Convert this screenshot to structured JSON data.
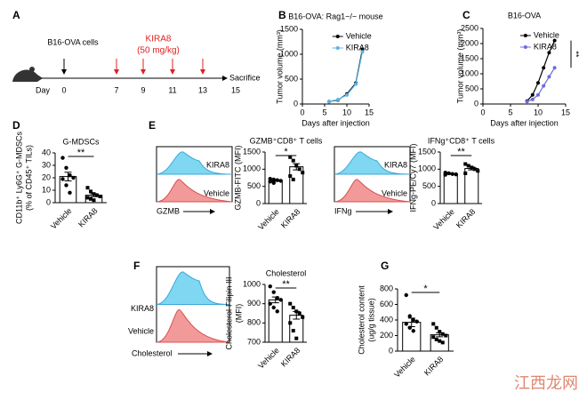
{
  "panel_labels": [
    "A",
    "B",
    "C",
    "D",
    "E",
    "F",
    "G"
  ],
  "timeline": {
    "cells_label": "B16-OVA cells",
    "drug_label": "KIRA8",
    "dose_label": "(50 mg/kg)",
    "day_label": "Day",
    "days": [
      0,
      7,
      9,
      11,
      13,
      15
    ],
    "end_label": "Sacrifice"
  },
  "histograms": [
    {
      "labels": [
        "KIRA8",
        "Vehicle"
      ],
      "axis_label": "GZMB"
    },
    {
      "labels": [
        "KIRA8",
        "Vehicle"
      ],
      "axis_label": "IFNg"
    },
    {
      "labels": [
        "KIRA8",
        "Vehicle"
      ],
      "axis_label": "Cholesterol"
    }
  ],
  "watermark": "江西龙网",
  "chart_data": [
    {
      "type": "line",
      "title": "B16-OVA: Rag1−/− mouse",
      "xlabel": "Days after injection",
      "ylabel": "Tumor volume (mm³)",
      "x": [
        6,
        8,
        10,
        12,
        13.5
      ],
      "xlim": [
        0,
        15
      ],
      "xticks": [
        0,
        5,
        10,
        15
      ],
      "ylim": [
        0,
        1500
      ],
      "yticks": [
        0,
        500,
        1000,
        1500
      ],
      "series": [
        {
          "name": "Vehicle",
          "color": "#000000",
          "values": [
            50,
            80,
            200,
            420,
            1100
          ]
        },
        {
          "name": "KIRA8",
          "color": "#5ab4e6",
          "values": [
            50,
            90,
            180,
            400,
            1050
          ]
        }
      ]
    },
    {
      "type": "line",
      "title": "B16-OVA",
      "xlabel": "Days after injection",
      "ylabel": "Tumor volume (mm³)",
      "x": [
        8,
        9,
        10,
        11,
        12,
        13
      ],
      "xlim": [
        0,
        15
      ],
      "xticks": [
        0,
        5,
        10,
        15
      ],
      "ylim": [
        0,
        2500
      ],
      "yticks": [
        0,
        500,
        1000,
        1500,
        2000,
        2500
      ],
      "annotation": "**",
      "series": [
        {
          "name": "Vehicle",
          "color": "#000000",
          "values": [
            100,
            300,
            700,
            1200,
            1700,
            2100
          ]
        },
        {
          "name": "KIRA8",
          "color": "#6b6be0",
          "values": [
            80,
            150,
            300,
            600,
            900,
            1200
          ]
        }
      ]
    },
    {
      "type": "dotbar",
      "title": "G-MDSCs",
      "ylabel": [
        "CD11b⁺ Ly6G⁺ G-MDSCs",
        "(% of CD45⁺ TILs)"
      ],
      "categories": [
        "Vehicle",
        "KIRA8"
      ],
      "values": [
        21,
        6
      ],
      "errors": [
        3.5,
        1.2
      ],
      "points": [
        [
          36,
          28,
          22,
          20,
          19,
          14,
          8
        ],
        [
          12,
          9,
          7,
          6,
          5,
          4,
          3,
          2
        ]
      ],
      "ylim": [
        0,
        40
      ],
      "yticks": [
        0,
        10,
        20,
        30,
        40
      ],
      "significance": "**"
    },
    {
      "type": "dotbar",
      "title": "GZMB⁺CD8⁺ T cells",
      "ylabel": [
        "GZMB-FITC (MFI)"
      ],
      "categories": [
        "Vehicle",
        "KIRA8"
      ],
      "values": [
        670,
        1070
      ],
      "errors": [
        25,
        90
      ],
      "points": [
        [
          720,
          700,
          680,
          660,
          640,
          600
        ],
        [
          1350,
          1250,
          1100,
          1000,
          900,
          800,
          700
        ]
      ],
      "ylim": [
        0,
        1500
      ],
      "yticks": [
        0,
        500,
        1000,
        1500
      ],
      "significance": "*"
    },
    {
      "type": "dotbar",
      "title": "IFNg⁺CD8⁺ T cells",
      "ylabel": [
        "IFNg-PE/Cy7 (MFI)"
      ],
      "categories": [
        "Vehicle",
        "KIRA8"
      ],
      "values": [
        860,
        1020
      ],
      "errors": [
        10,
        40
      ],
      "points": [
        [
          900,
          880,
          860,
          850,
          840
        ],
        [
          1150,
          1100,
          1050,
          1000,
          950,
          880
        ]
      ],
      "ylim": [
        0,
        1500
      ],
      "yticks": [
        0,
        500,
        1000,
        1500
      ],
      "significance": "**"
    },
    {
      "type": "dotbar",
      "title": "Cholesterol",
      "ylabel": [
        "Cholesterol-Filipin III",
        "(MFI)"
      ],
      "categories": [
        "Vehicle",
        "KIRA8"
      ],
      "values": [
        920,
        840
      ],
      "errors": [
        15,
        20
      ],
      "points": [
        [
          990,
          960,
          930,
          920,
          900,
          880,
          860
        ],
        [
          900,
          880,
          860,
          850,
          830,
          800,
          760,
          720
        ]
      ],
      "ylim": [
        700,
        1000
      ],
      "yticks": [
        700,
        800,
        900,
        1000
      ],
      "significance": "**"
    },
    {
      "type": "dotbar",
      "ylabel": [
        "Cholesterol content",
        "(ug/g tissue)"
      ],
      "categories": [
        "Vehicle",
        "KIRA8"
      ],
      "values": [
        370,
        210
      ],
      "errors": [
        55,
        25
      ],
      "points": [
        [
          720,
          450,
          400,
          380,
          350,
          300,
          260
        ],
        [
          350,
          300,
          250,
          220,
          200,
          180,
          150,
          130,
          110
        ]
      ],
      "ylim": [
        0,
        800
      ],
      "yticks": [
        0,
        200,
        400,
        600,
        800
      ],
      "significance": "*"
    }
  ]
}
